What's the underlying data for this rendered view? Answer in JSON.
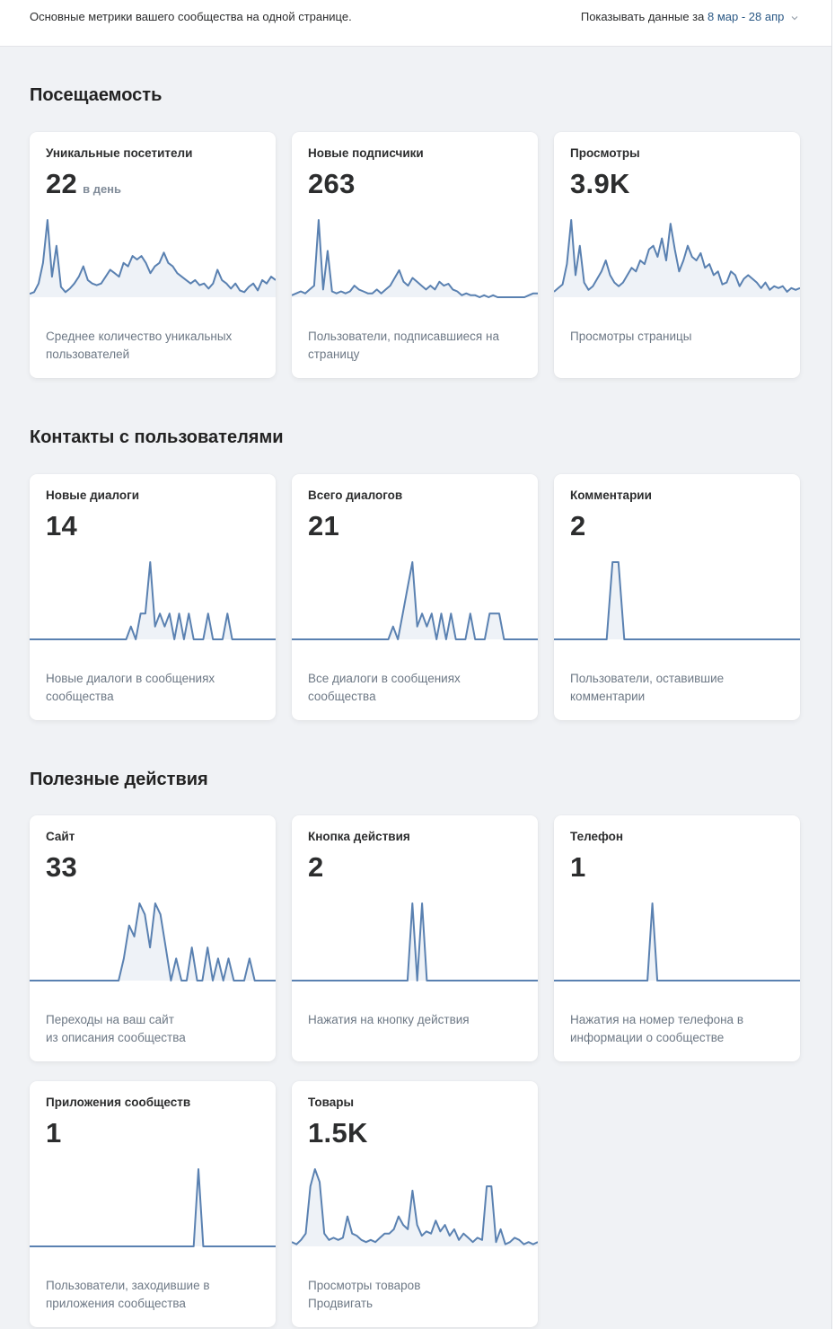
{
  "header": {
    "description": "Основные метрики вашего сообщества на одной странице.",
    "period_label": "Показывать данные за",
    "period_value": "8 мар - 28 апр",
    "chevron_icon": "chevron-down-icon"
  },
  "colors": {
    "line": "#5a81b1",
    "fill": "#eef2f7",
    "link": "#2a5885"
  },
  "sections": [
    {
      "title": "Посещаемость",
      "cards": [
        {
          "title": "Уникальные посетители",
          "value": "22",
          "unit": "в день",
          "footer": [
            "Среднее количество уникальных",
            "пользователей"
          ],
          "series": [
            2,
            3,
            8,
            20,
            45,
            12,
            30,
            6,
            3,
            5,
            8,
            12,
            18,
            10,
            8,
            7,
            8,
            12,
            16,
            14,
            12,
            20,
            18,
            24,
            22,
            24,
            20,
            14,
            18,
            20,
            26,
            20,
            18,
            14,
            12,
            10,
            8,
            10,
            7,
            8,
            5,
            8,
            16,
            10,
            8,
            5,
            8,
            4,
            3,
            6,
            8,
            4,
            10,
            8,
            12,
            10
          ]
        },
        {
          "title": "Новые подписчики",
          "value": "263",
          "unit": "",
          "footer": [
            "Пользователи, подписавшиеся на",
            "страницу"
          ],
          "series": [
            1,
            2,
            3,
            2,
            4,
            6,
            40,
            4,
            24,
            3,
            2,
            3,
            2,
            3,
            6,
            4,
            3,
            2,
            2,
            4,
            2,
            4,
            6,
            10,
            14,
            8,
            6,
            10,
            8,
            6,
            4,
            6,
            4,
            8,
            6,
            7,
            4,
            3,
            1,
            2,
            1,
            1,
            0,
            1,
            0,
            1,
            0,
            0,
            0,
            0,
            0,
            0,
            0,
            1,
            2,
            2
          ]
        },
        {
          "title": "Просмотры",
          "value": "3.9K",
          "unit": "",
          "footer": [
            "",
            "Просмотры страницы"
          ],
          "series": [
            3,
            5,
            7,
            18,
            42,
            12,
            28,
            8,
            4,
            6,
            10,
            14,
            20,
            12,
            8,
            6,
            8,
            12,
            16,
            14,
            20,
            18,
            26,
            28,
            22,
            32,
            20,
            40,
            26,
            14,
            20,
            28,
            22,
            20,
            24,
            16,
            18,
            12,
            14,
            7,
            8,
            14,
            12,
            6,
            10,
            12,
            10,
            8,
            5,
            8,
            4,
            6,
            5,
            6,
            3,
            5,
            4,
            5
          ]
        }
      ]
    },
    {
      "title": "Контакты с пользователями",
      "cards": [
        {
          "title": "Новые диалоги",
          "value": "14",
          "unit": "",
          "footer": [
            "Новые диалоги в сообщениях",
            "сообщества"
          ],
          "series": [
            0,
            0,
            0,
            0,
            0,
            0,
            0,
            0,
            0,
            0,
            0,
            0,
            0,
            0,
            0,
            0,
            0,
            0,
            0,
            0,
            0,
            1,
            0,
            2,
            2,
            6,
            1,
            2,
            1,
            2,
            0,
            2,
            0,
            2,
            0,
            0,
            0,
            2,
            0,
            0,
            0,
            2,
            0,
            0,
            0,
            0,
            0,
            0,
            0,
            0,
            0,
            0
          ]
        },
        {
          "title": "Всего диалогов",
          "value": "21",
          "unit": "",
          "footer": [
            "Все диалоги в сообщениях",
            "сообщества"
          ],
          "series": [
            0,
            0,
            0,
            0,
            0,
            0,
            0,
            0,
            0,
            0,
            0,
            0,
            0,
            0,
            0,
            0,
            0,
            0,
            0,
            0,
            0,
            1,
            0,
            2,
            4,
            6,
            1,
            2,
            1,
            2,
            0,
            2,
            0,
            2,
            0,
            0,
            0,
            2,
            0,
            0,
            0,
            2,
            2,
            2,
            0,
            0,
            0,
            0,
            0,
            0,
            0,
            0
          ]
        },
        {
          "title": "Комментарии",
          "value": "2",
          "unit": "",
          "footer": [
            "Пользователи, оставившие",
            "комментарии"
          ],
          "series": [
            0,
            0,
            0,
            0,
            0,
            0,
            0,
            0,
            0,
            0,
            1,
            1,
            0,
            0,
            0,
            0,
            0,
            0,
            0,
            0,
            0,
            0,
            0,
            0,
            0,
            0,
            0,
            0,
            0,
            0,
            0,
            0,
            0,
            0,
            0,
            0,
            0,
            0,
            0,
            0,
            0,
            0,
            0
          ]
        }
      ]
    },
    {
      "title": "Полезные действия",
      "cards": [
        {
          "title": "Сайт",
          "value": "33",
          "unit": "",
          "footer": [
            "Переходы на ваш сайт",
            "из описания сообщества"
          ],
          "series": [
            0,
            0,
            0,
            0,
            0,
            0,
            0,
            0,
            0,
            0,
            0,
            0,
            0,
            0,
            0,
            0,
            0,
            0,
            2,
            5,
            4,
            7,
            6,
            3,
            7,
            6,
            3,
            0,
            2,
            0,
            0,
            3,
            0,
            0,
            3,
            0,
            2,
            0,
            2,
            0,
            0,
            0,
            2,
            0,
            0,
            0,
            0,
            0
          ]
        },
        {
          "title": "Кнопка действия",
          "value": "2",
          "unit": "",
          "footer": [
            "",
            "Нажатия на кнопку действия"
          ],
          "series": [
            0,
            0,
            0,
            0,
            0,
            0,
            0,
            0,
            0,
            0,
            0,
            0,
            0,
            0,
            0,
            0,
            0,
            0,
            0,
            0,
            0,
            0,
            0,
            0,
            0,
            1,
            0,
            1,
            0,
            0,
            0,
            0,
            0,
            0,
            0,
            0,
            0,
            0,
            0,
            0,
            0,
            0,
            0,
            0,
            0,
            0,
            0,
            0,
            0,
            0,
            0,
            0
          ]
        },
        {
          "title": "Телефон",
          "value": "1",
          "unit": "",
          "footer": [
            "Нажатия на номер телефона в",
            "информации о сообществе"
          ],
          "series": [
            0,
            0,
            0,
            0,
            0,
            0,
            0,
            0,
            0,
            0,
            0,
            0,
            0,
            0,
            0,
            0,
            0,
            0,
            0,
            0,
            1,
            0,
            0,
            0,
            0,
            0,
            0,
            0,
            0,
            0,
            0,
            0,
            0,
            0,
            0,
            0,
            0,
            0,
            0,
            0,
            0,
            0,
            0,
            0,
            0,
            0,
            0,
            0,
            0,
            0,
            0
          ]
        }
      ]
    },
    {
      "title": "",
      "cards": [
        {
          "title": "Приложения сообществ",
          "value": "1",
          "unit": "",
          "footer": [
            "Пользователи, заходившие в",
            "приложения сообщества"
          ],
          "series": [
            0,
            0,
            0,
            0,
            0,
            0,
            0,
            0,
            0,
            0,
            0,
            0,
            0,
            0,
            0,
            0,
            0,
            0,
            0,
            0,
            0,
            0,
            0,
            0,
            0,
            0,
            0,
            0,
            0,
            0,
            0,
            0,
            0,
            0,
            0,
            1,
            0,
            0,
            0,
            0,
            0,
            0,
            0,
            0,
            0,
            0,
            0,
            0,
            0,
            0,
            0,
            0
          ]
        },
        {
          "title": "Товары",
          "value": "1.5K",
          "unit": "",
          "footer": [
            "Просмотры товаров",
            "Продвигать"
          ],
          "series": [
            2,
            1,
            3,
            6,
            28,
            36,
            30,
            6,
            3,
            4,
            3,
            4,
            14,
            6,
            5,
            3,
            2,
            3,
            2,
            4,
            6,
            6,
            8,
            14,
            10,
            8,
            26,
            10,
            5,
            7,
            6,
            12,
            7,
            10,
            5,
            8,
            3,
            6,
            4,
            2,
            4,
            3,
            28,
            28,
            2,
            8,
            1,
            2,
            4,
            3,
            1,
            2,
            1,
            2
          ]
        }
      ]
    }
  ]
}
